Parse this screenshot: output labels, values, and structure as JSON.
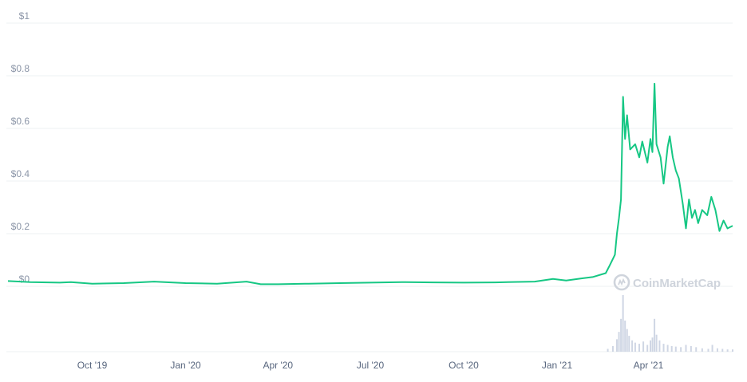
{
  "chart_data": {
    "type": "line",
    "title": "",
    "xlabel": "",
    "ylabel": "",
    "series_color": "#16c784",
    "volume_color": "#cfd6e4",
    "grid": true,
    "legend": "none",
    "ylim": [
      0,
      1
    ],
    "y_ticks": [
      {
        "value": 1,
        "label": "$1"
      },
      {
        "value": 0.8,
        "label": "$0.8"
      },
      {
        "value": 0.6,
        "label": "$0.6"
      },
      {
        "value": 0.4,
        "label": "$0.4"
      },
      {
        "value": 0.2,
        "label": "$0.2"
      },
      {
        "value": 0,
        "label": "$0"
      }
    ],
    "x_ticks": [
      {
        "date": "2019-10-01",
        "label": "Oct '19"
      },
      {
        "date": "2020-01-01",
        "label": "Jan '20"
      },
      {
        "date": "2020-04-01",
        "label": "Apr '20"
      },
      {
        "date": "2020-07-01",
        "label": "Jul '20"
      },
      {
        "date": "2020-10-01",
        "label": "Oct '20"
      },
      {
        "date": "2021-01-01",
        "label": "Jan '21"
      },
      {
        "date": "2021-04-01",
        "label": "Apr '21"
      }
    ],
    "xlim": [
      "2019-07-10",
      "2021-06-23"
    ],
    "price": [
      [
        "2019-07-10",
        0.02
      ],
      [
        "2019-08-01",
        0.016
      ],
      [
        "2019-08-30",
        0.014
      ],
      [
        "2019-09-10",
        0.016
      ],
      [
        "2019-10-01",
        0.01
      ],
      [
        "2019-11-01",
        0.012
      ],
      [
        "2019-12-01",
        0.018
      ],
      [
        "2020-01-01",
        0.012
      ],
      [
        "2020-02-01",
        0.01
      ],
      [
        "2020-03-01",
        0.018
      ],
      [
        "2020-03-15",
        0.008
      ],
      [
        "2020-04-01",
        0.008
      ],
      [
        "2020-05-01",
        0.01
      ],
      [
        "2020-06-01",
        0.012
      ],
      [
        "2020-07-01",
        0.014
      ],
      [
        "2020-08-01",
        0.016
      ],
      [
        "2020-09-01",
        0.015
      ],
      [
        "2020-10-01",
        0.014
      ],
      [
        "2020-11-01",
        0.015
      ],
      [
        "2020-12-10",
        0.018
      ],
      [
        "2020-12-28",
        0.028
      ],
      [
        "2021-01-10",
        0.022
      ],
      [
        "2021-01-25",
        0.03
      ],
      [
        "2021-02-05",
        0.035
      ],
      [
        "2021-02-18",
        0.05
      ],
      [
        "2021-02-22",
        0.08
      ],
      [
        "2021-02-27",
        0.12
      ],
      [
        "2021-03-01",
        0.2
      ],
      [
        "2021-03-03",
        0.26
      ],
      [
        "2021-03-05",
        0.33
      ],
      [
        "2021-03-07",
        0.72
      ],
      [
        "2021-03-09",
        0.56
      ],
      [
        "2021-03-11",
        0.65
      ],
      [
        "2021-03-14",
        0.52
      ],
      [
        "2021-03-19",
        0.54
      ],
      [
        "2021-03-23",
        0.49
      ],
      [
        "2021-03-26",
        0.55
      ],
      [
        "2021-03-31",
        0.47
      ],
      [
        "2021-04-03",
        0.56
      ],
      [
        "2021-04-05",
        0.51
      ],
      [
        "2021-04-07",
        0.77
      ],
      [
        "2021-04-09",
        0.54
      ],
      [
        "2021-04-13",
        0.49
      ],
      [
        "2021-04-16",
        0.39
      ],
      [
        "2021-04-20",
        0.53
      ],
      [
        "2021-04-22",
        0.57
      ],
      [
        "2021-04-25",
        0.49
      ],
      [
        "2021-04-28",
        0.44
      ],
      [
        "2021-05-01",
        0.41
      ],
      [
        "2021-05-05",
        0.31
      ],
      [
        "2021-05-08",
        0.22
      ],
      [
        "2021-05-11",
        0.33
      ],
      [
        "2021-05-14",
        0.26
      ],
      [
        "2021-05-17",
        0.29
      ],
      [
        "2021-05-20",
        0.24
      ],
      [
        "2021-05-24",
        0.29
      ],
      [
        "2021-05-29",
        0.27
      ],
      [
        "2021-06-02",
        0.34
      ],
      [
        "2021-06-06",
        0.29
      ],
      [
        "2021-06-10",
        0.21
      ],
      [
        "2021-06-14",
        0.25
      ],
      [
        "2021-06-18",
        0.22
      ],
      [
        "2021-06-23",
        0.23
      ]
    ],
    "volume": [
      [
        "2021-02-20",
        0.05
      ],
      [
        "2021-02-25",
        0.1
      ],
      [
        "2021-03-01",
        0.22
      ],
      [
        "2021-03-03",
        0.35
      ],
      [
        "2021-03-05",
        0.58
      ],
      [
        "2021-03-07",
        1.0
      ],
      [
        "2021-03-09",
        0.55
      ],
      [
        "2021-03-11",
        0.4
      ],
      [
        "2021-03-13",
        0.28
      ],
      [
        "2021-03-16",
        0.2
      ],
      [
        "2021-03-19",
        0.16
      ],
      [
        "2021-03-23",
        0.14
      ],
      [
        "2021-03-27",
        0.18
      ],
      [
        "2021-03-31",
        0.12
      ],
      [
        "2021-04-03",
        0.2
      ],
      [
        "2021-04-05",
        0.25
      ],
      [
        "2021-04-07",
        0.58
      ],
      [
        "2021-04-09",
        0.3
      ],
      [
        "2021-04-12",
        0.2
      ],
      [
        "2021-04-16",
        0.14
      ],
      [
        "2021-04-20",
        0.12
      ],
      [
        "2021-04-24",
        0.1
      ],
      [
        "2021-04-28",
        0.09
      ],
      [
        "2021-05-03",
        0.08
      ],
      [
        "2021-05-08",
        0.12
      ],
      [
        "2021-05-13",
        0.1
      ],
      [
        "2021-05-18",
        0.08
      ],
      [
        "2021-05-24",
        0.06
      ],
      [
        "2021-05-30",
        0.05
      ],
      [
        "2021-06-03",
        0.12
      ],
      [
        "2021-06-08",
        0.06
      ],
      [
        "2021-06-13",
        0.05
      ],
      [
        "2021-06-18",
        0.04
      ],
      [
        "2021-06-23",
        0.04
      ]
    ]
  },
  "watermark": {
    "text": "CoinMarketCap",
    "icon": "coinmarketcap-logo-icon"
  }
}
